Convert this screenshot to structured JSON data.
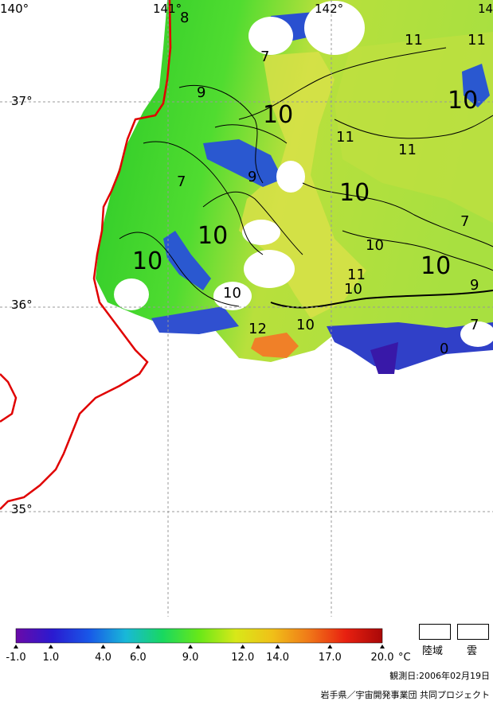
{
  "map": {
    "lon_labels": [
      "140°",
      "141°",
      "142°",
      "14"
    ],
    "lat_labels": [
      "37°",
      "36°",
      "35°"
    ],
    "contour_labels": [
      "8",
      "7",
      "11",
      "11",
      "9",
      "10",
      "10",
      "7",
      "10",
      "11",
      "11",
      "9",
      "10",
      "7",
      "10",
      "10",
      "10",
      "11",
      "10",
      "9",
      "10",
      "12",
      "10",
      "7",
      "0"
    ],
    "colors": {
      "coastline": "#e00000",
      "grid": "#999999",
      "water_cold": "#2040c0",
      "water_mid": "#3cd23c",
      "water_warm": "#d8e83c",
      "water_hot": "#f08020",
      "cloud_land": "#ffffff"
    }
  },
  "colorbar": {
    "ticks": [
      "-1.0",
      "1.0",
      "4.0",
      "6.0",
      "9.0",
      "12.0",
      "14.0",
      "17.0",
      "20.0"
    ],
    "unit": "°C",
    "min": -1.0,
    "max": 20.0,
    "stops": [
      "#6a0aa8",
      "#2a1ad0",
      "#1858e8",
      "#18b8d8",
      "#18d860",
      "#68e818",
      "#d8e818",
      "#f0c018",
      "#f07818",
      "#e82010",
      "#a80808"
    ]
  },
  "legend": {
    "land_label": "陸域",
    "cloud_label": "雲"
  },
  "footer": {
    "date": "観測日:2006年02月19日",
    "credit": "岩手県／宇宙開発事業団 共同プロジェクト"
  }
}
